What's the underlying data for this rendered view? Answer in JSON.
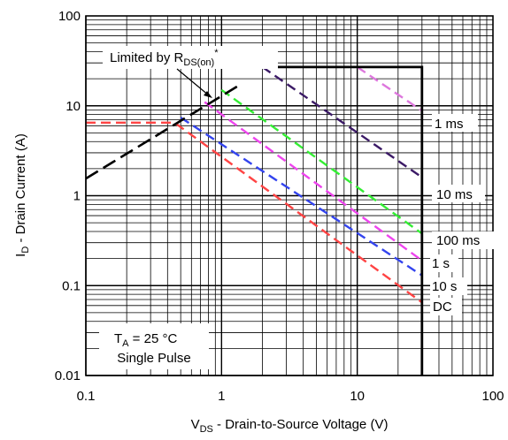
{
  "chart_data": {
    "type": "line",
    "xscale": "log",
    "yscale": "log",
    "xlim": [
      0.1,
      100
    ],
    "ylim": [
      0.01,
      100
    ],
    "grid": true,
    "xlabel": {
      "main": "V",
      "sub": "DS",
      "rest": " - Drain-to-Source Voltage (V)"
    },
    "ylabel": {
      "main": "I",
      "sub": "D",
      "rest": " - Drain Current (A)"
    },
    "x_ticks": [
      {
        "value": 0.1,
        "label": "0.1"
      },
      {
        "value": 1,
        "label": "1"
      },
      {
        "value": 10,
        "label": "10"
      },
      {
        "value": 100,
        "label": "100"
      }
    ],
    "y_ticks": [
      {
        "value": 0.01,
        "label": "0.01"
      },
      {
        "value": 0.1,
        "label": "0.1"
      },
      {
        "value": 1,
        "label": "1"
      },
      {
        "value": 10,
        "label": "10"
      },
      {
        "value": 100,
        "label": "100"
      }
    ],
    "boundary": {
      "name": "safe operating area limit",
      "color": "#000000",
      "points": [
        [
          1.9,
          27
        ],
        [
          30,
          27
        ],
        [
          30,
          0.01
        ]
      ]
    },
    "rds_limit": {
      "color": "#000000",
      "points": [
        [
          0.1,
          1.55
        ],
        [
          1.4,
          17.5
        ]
      ]
    },
    "series": [
      {
        "name": "1 ms",
        "color": "#dd77dd",
        "points": [
          [
            10,
            27
          ],
          [
            30,
            8.8
          ]
        ]
      },
      {
        "name": "10 ms",
        "color": "#3b1a66",
        "points": [
          [
            2,
            27
          ],
          [
            30,
            1.6
          ]
        ]
      },
      {
        "name": "100 ms",
        "color": "#33ee33",
        "points": [
          [
            1,
            15
          ],
          [
            30,
            0.38
          ]
        ]
      },
      {
        "name": "1 s",
        "color": "#ee44ee",
        "points": [
          [
            0.75,
            11
          ],
          [
            30,
            0.19
          ]
        ]
      },
      {
        "name": "10 s",
        "color": "#3344ee",
        "points": [
          [
            0.5,
            7.4
          ],
          [
            30,
            0.13
          ]
        ]
      },
      {
        "name": "DC",
        "color": "#ff4444",
        "points": [
          [
            0.1,
            6.5
          ],
          [
            0.45,
            6.5
          ],
          [
            30,
            0.065
          ]
        ]
      }
    ],
    "annotations": {
      "limited": {
        "main": "Limited by R",
        "sub": "DS(on)",
        "sup": "*"
      },
      "temp": {
        "main": "T",
        "sub": "A",
        "rest": " = 25 °C"
      },
      "pulse": "Single Pulse"
    },
    "curve_labels": [
      {
        "series": "1 ms",
        "text": "1 ms"
      },
      {
        "series": "10 ms",
        "text": "10 ms"
      },
      {
        "series": "100 ms",
        "text": "100 ms"
      },
      {
        "series": "1 s",
        "text": "1 s"
      },
      {
        "series": "10 s",
        "text": "10 s"
      },
      {
        "series": "DC",
        "text": "DC"
      }
    ]
  }
}
